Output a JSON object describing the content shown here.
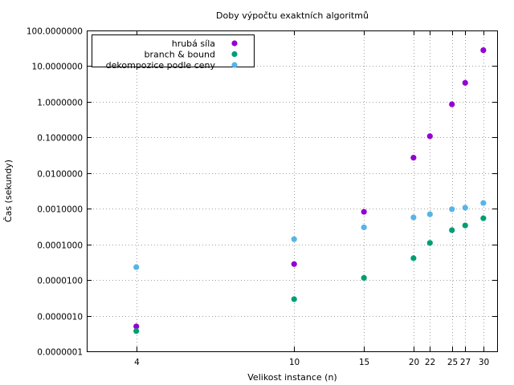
{
  "chart_data": {
    "type": "scatter",
    "title": "Doby výpočtu exaktních algoritmů",
    "xlabel": "Velikost instance (n)",
    "ylabel": "Čas (sekundy)",
    "x_scale": "log",
    "y_scale": "log",
    "xlim": [
      3,
      32.5
    ],
    "ylim": [
      1e-07,
      100
    ],
    "x_ticks": [
      4,
      10,
      15,
      20,
      22,
      25,
      27,
      30
    ],
    "x_tick_labels": [
      "4",
      "10",
      "15",
      "20",
      "22",
      "25",
      "27",
      "30"
    ],
    "y_ticks": [
      1e-07,
      1e-06,
      1e-05,
      0.0001,
      0.001,
      0.01,
      0.1,
      1,
      10,
      100
    ],
    "y_tick_labels": [
      "0.0000001",
      "0.0000010",
      "0.0000100",
      "0.0001000",
      "0.0010000",
      "0.0100000",
      "0.1000000",
      "1.0000000",
      "10.0000000",
      "100.0000000"
    ],
    "grid": true,
    "legend_position": "top-left",
    "series": [
      {
        "name": "hrubá síla",
        "color": "#9400d3",
        "x": [
          4,
          10,
          15,
          20,
          22,
          25,
          27,
          30
        ],
        "y": [
          5e-07,
          2.8e-05,
          0.00082,
          0.027,
          0.108,
          0.85,
          3.4,
          28
        ]
      },
      {
        "name": "branch & bound",
        "color": "#009e73",
        "x": [
          4,
          10,
          15,
          20,
          22,
          25,
          27,
          30
        ],
        "y": [
          3.7e-07,
          2.9e-06,
          1.15e-05,
          4.1e-05,
          0.00011,
          0.00025,
          0.00034,
          0.00054
        ]
      },
      {
        "name": "dekompozice podle ceny",
        "color": "#56b4e9",
        "x": [
          4,
          10,
          15,
          20,
          22,
          25,
          27,
          30
        ],
        "y": [
          2.3e-05,
          0.00014,
          0.0003,
          0.00057,
          0.0007,
          0.00097,
          0.00107,
          0.00145
        ]
      }
    ]
  }
}
